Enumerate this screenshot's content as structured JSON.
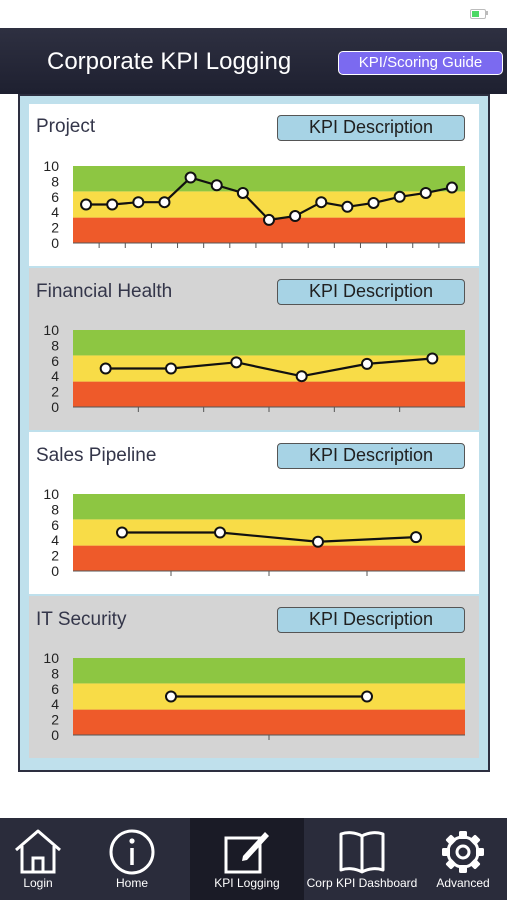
{
  "app": {
    "title": "Corporate KPI Logging",
    "guide_button": "KPI/Scoring Guide"
  },
  "sections": [
    {
      "title": "Project",
      "button": "KPI Description"
    },
    {
      "title": "Financial Health",
      "button": "KPI Description"
    },
    {
      "title": "Sales Pipeline",
      "button": "KPI Description"
    },
    {
      "title": "IT Security",
      "button": "KPI Description"
    }
  ],
  "colors": {
    "band_high": "#8dc642",
    "band_mid": "#f8dc47",
    "band_low": "#ee5a2a",
    "accent": "#7b6af0",
    "header": "#2a2c3b"
  },
  "chart_data": [
    {
      "type": "line",
      "title": "Project",
      "ylim": [
        0,
        10
      ],
      "yticks": [
        "0",
        "2",
        "4",
        "6",
        "8",
        "10"
      ],
      "bands": [
        [
          0,
          3.3
        ],
        [
          3.3,
          6.7
        ],
        [
          6.7,
          10
        ]
      ],
      "values": [
        5,
        5,
        5.3,
        5.3,
        8.5,
        7.5,
        6.5,
        3,
        3.5,
        5.3,
        4.7,
        5.2,
        6,
        6.5,
        7.2
      ]
    },
    {
      "type": "line",
      "title": "Financial Health",
      "ylim": [
        0,
        10
      ],
      "yticks": [
        "0",
        "2",
        "4",
        "6",
        "8",
        "10"
      ],
      "bands": [
        [
          0,
          3.3
        ],
        [
          3.3,
          6.7
        ],
        [
          6.7,
          10
        ]
      ],
      "values": [
        5,
        5,
        5.8,
        4,
        5.6,
        6.3
      ]
    },
    {
      "type": "line",
      "title": "Sales Pipeline",
      "ylim": [
        0,
        10
      ],
      "yticks": [
        "0",
        "2",
        "4",
        "6",
        "8",
        "10"
      ],
      "bands": [
        [
          0,
          3.3
        ],
        [
          3.3,
          6.7
        ],
        [
          6.7,
          10
        ]
      ],
      "values": [
        5,
        5,
        3.8,
        4.4
      ]
    },
    {
      "type": "line",
      "title": "IT Security",
      "ylim": [
        0,
        10
      ],
      "yticks": [
        "0",
        "2",
        "4",
        "6",
        "8",
        "10"
      ],
      "bands": [
        [
          0,
          3.3
        ],
        [
          3.3,
          6.7
        ],
        [
          6.7,
          10
        ]
      ],
      "values": [
        5,
        5
      ]
    }
  ],
  "tabs": [
    {
      "label": "Login",
      "icon": "home-icon",
      "active": false
    },
    {
      "label": "Home",
      "icon": "info-icon",
      "active": false
    },
    {
      "label": "KPI Logging",
      "icon": "compose-icon",
      "active": true
    },
    {
      "label": "Corp KPI Dashboard",
      "icon": "book-icon",
      "active": false
    },
    {
      "label": "Advanced",
      "icon": "gear-icon",
      "active": false
    }
  ]
}
